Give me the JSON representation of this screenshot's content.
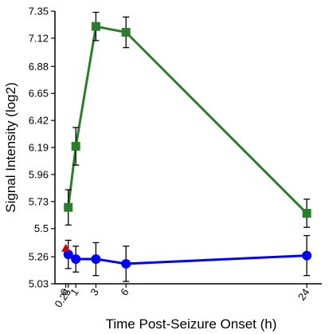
{
  "chart_data": {
    "type": "line",
    "title": "",
    "xlabel": "Time Post-Seizure Onset (h)",
    "ylabel": "Signal Intensity (log2)",
    "x": [
      0,
      0.25,
      1,
      3,
      6,
      24
    ],
    "xtick_labels": [
      "0",
      "0.25",
      "1",
      "3",
      "6",
      "24"
    ],
    "yticks": [
      5.03,
      5.26,
      5.5,
      5.73,
      5.96,
      6.19,
      6.42,
      6.65,
      6.88,
      7.12,
      7.35
    ],
    "ytick_labels": [
      "5.03",
      "5.26",
      "5.5",
      "5.73",
      "5.96",
      "6.19",
      "6.42",
      "6.65",
      "6.88",
      "7.12",
      "7.35"
    ],
    "xlim": [
      -0.6,
      25.5
    ],
    "ylim": [
      5.03,
      7.35
    ],
    "grid": false,
    "series": [
      {
        "color": "#2a7d2a",
        "marker": "square",
        "points": [
          {
            "x": 0.25,
            "y": 5.68,
            "err": 0.15
          },
          {
            "x": 1,
            "y": 6.2,
            "err": 0.16
          },
          {
            "x": 3,
            "y": 7.22,
            "err": 0.12
          },
          {
            "x": 6,
            "y": 7.17,
            "err": 0.13
          },
          {
            "x": 24,
            "y": 5.63,
            "err": 0.12
          }
        ]
      },
      {
        "color": "#0000ff",
        "marker": "circle",
        "points": [
          {
            "x": 0.25,
            "y": 5.28,
            "err": 0.12
          },
          {
            "x": 1,
            "y": 5.24,
            "err": 0.11
          },
          {
            "x": 3,
            "y": 5.24,
            "err": 0.14
          },
          {
            "x": 6,
            "y": 5.2,
            "err": 0.15
          },
          {
            "x": 24,
            "y": 5.27,
            "err": 0.17
          }
        ]
      },
      {
        "color": "#cc0000",
        "marker": "triangle",
        "points": [
          {
            "x": 0,
            "y": 5.33,
            "err": 0
          }
        ]
      }
    ]
  }
}
